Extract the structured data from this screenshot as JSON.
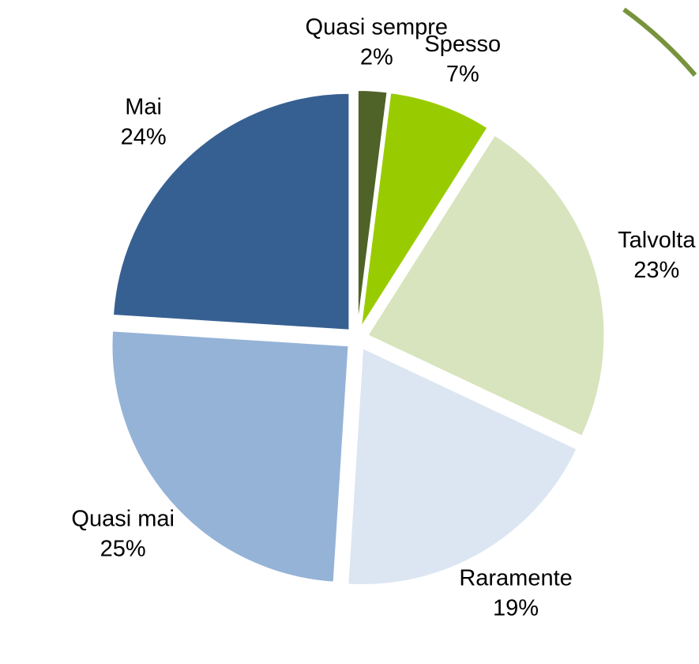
{
  "chart_data": {
    "type": "pie",
    "categories": [
      "Quasi sempre",
      "Spesso",
      "Talvolta",
      "Raramente",
      "Quasi mai",
      "Mai"
    ],
    "values": [
      2,
      7,
      23,
      19,
      25,
      24
    ],
    "value_labels": [
      "2%",
      "7%",
      "23%",
      "19%",
      "25%",
      "24%"
    ],
    "colors": [
      "#4f6228",
      "#99cc00",
      "#d7e4bd",
      "#dce6f2",
      "#95b3d7",
      "#376092"
    ]
  }
}
